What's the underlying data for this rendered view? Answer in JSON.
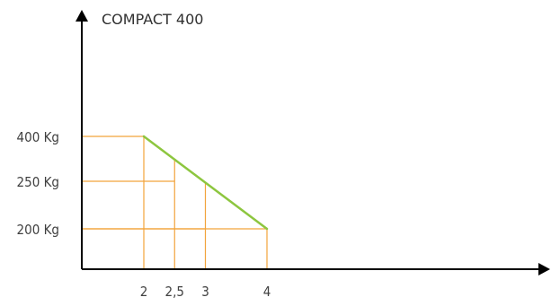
{
  "chart_data": {
    "type": "line",
    "title": "COMPACT 400",
    "xlabel": "",
    "ylabel": "",
    "x": [
      2,
      2.5,
      3,
      4
    ],
    "x_tick_labels": [
      "2",
      "2,5",
      "3",
      "4"
    ],
    "y_tick_values": [
      400,
      250,
      200
    ],
    "y_tick_labels": [
      "400 Kg",
      "250 Kg",
      "200 Kg"
    ],
    "series": [
      {
        "points": [
          [
            2,
            400
          ],
          [
            4,
            200
          ]
        ]
      }
    ],
    "guides": [
      {
        "x": 2,
        "y": 400
      },
      {
        "x": 2.5,
        "y": 250
      },
      {
        "x": 3,
        "y": 200
      },
      {
        "x": 4,
        "y": 200
      }
    ],
    "grid": false,
    "colors": {
      "line": "#8dc63f",
      "guides": "#f2a33a",
      "axis": "#000000"
    }
  }
}
